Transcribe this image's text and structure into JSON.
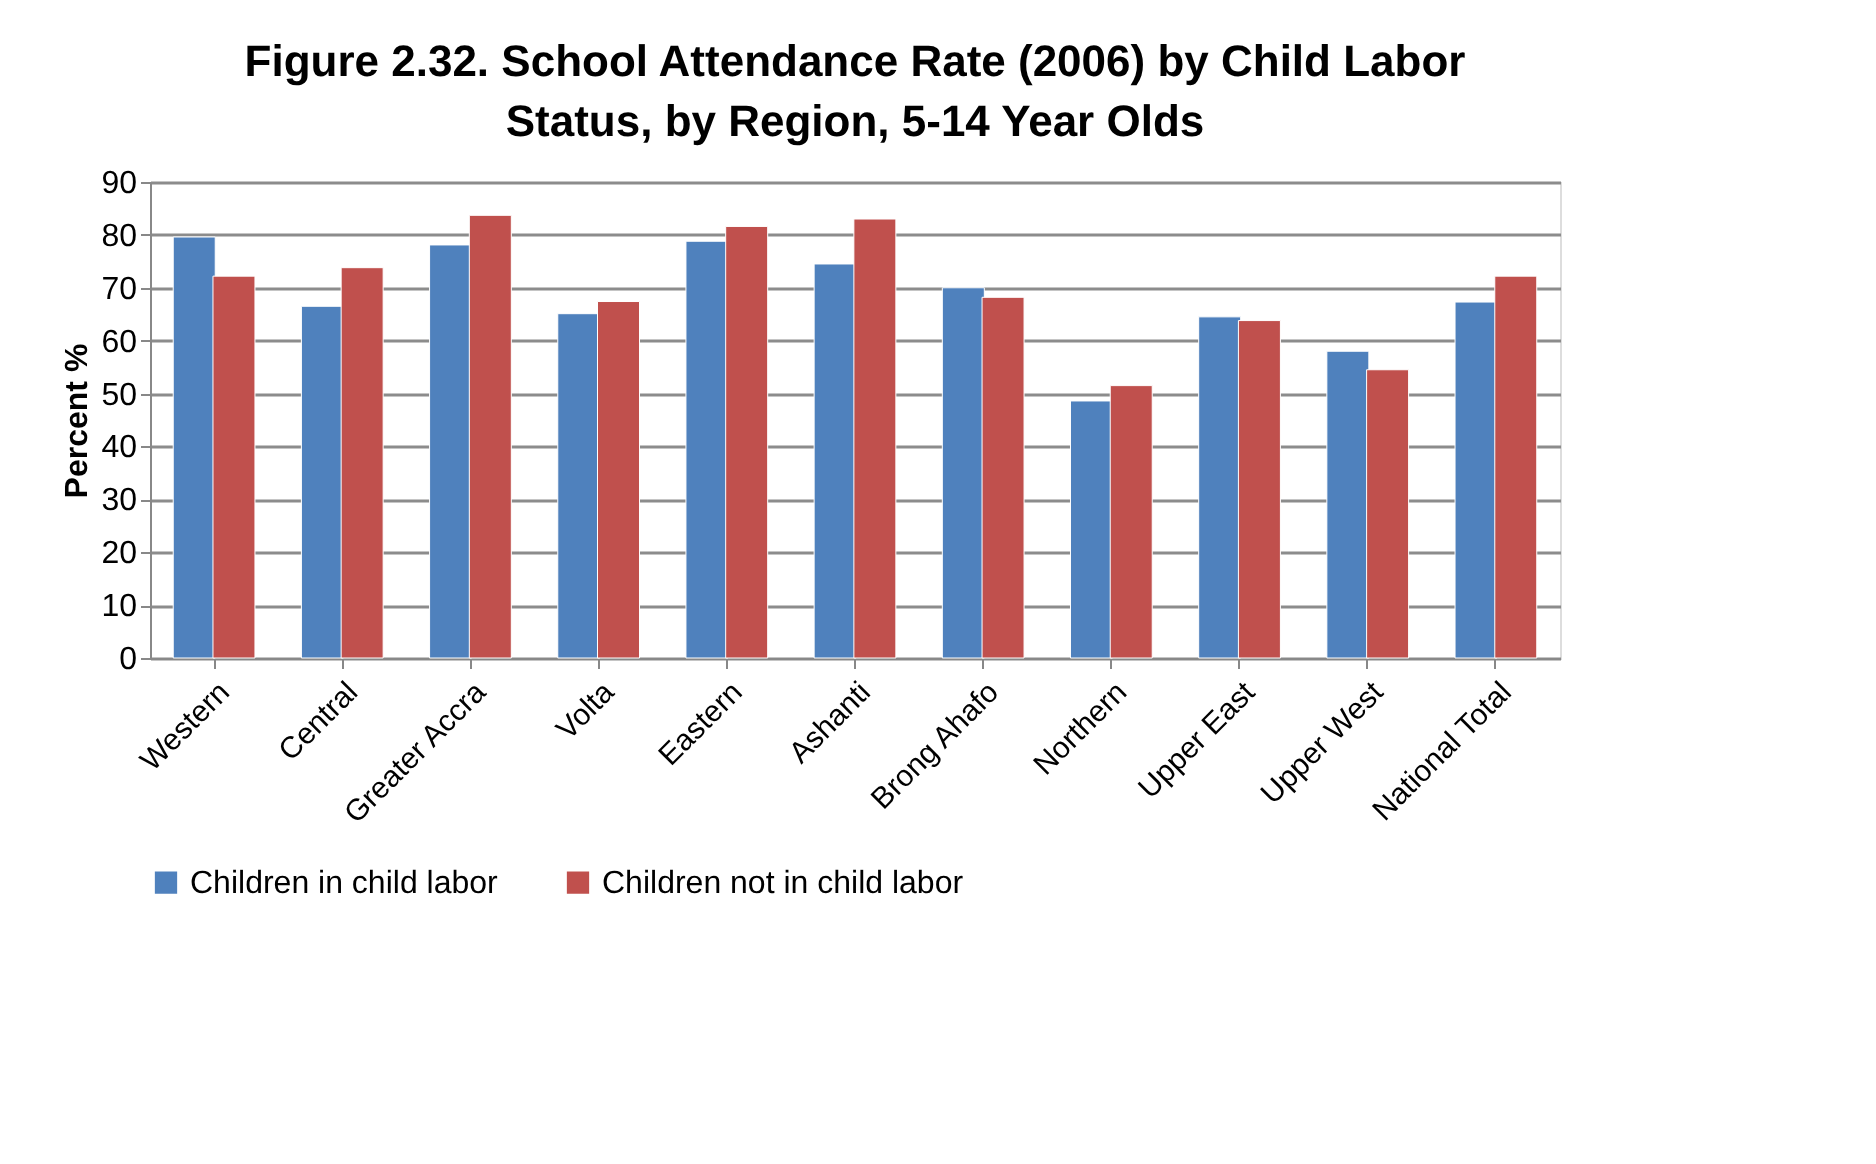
{
  "chart_data": {
    "type": "bar",
    "title": "Figure 2.32.  School Attendance Rate (2006) by Child Labor Status, by Region, 5-14 Year Olds",
    "ylabel": "Percent %",
    "categories": [
      "Western",
      "Central",
      "Greater Accra",
      "Volta",
      "Eastern",
      "Ashanti",
      "Brong Ahafo",
      "Northern",
      "Upper East",
      "Upper West",
      "National Total"
    ],
    "series": [
      {
        "name": "Children in child labor",
        "color": "#4f81bd",
        "values": [
          79.6,
          66.5,
          78.1,
          65.1,
          78.8,
          74.5,
          70.0,
          48.6,
          64.5,
          58.0,
          67.3
        ]
      },
      {
        "name": "Children not in child labor",
        "color": "#c0504d",
        "values": [
          72.2,
          73.8,
          83.7,
          67.4,
          81.6,
          83.0,
          68.2,
          51.5,
          63.8,
          54.5,
          72.2
        ]
      }
    ],
    "ylim": [
      0,
      90
    ],
    "yticks": [
      0,
      10,
      20,
      30,
      40,
      50,
      60,
      70,
      80,
      90
    ],
    "grid": "y",
    "legend": "bottom"
  }
}
